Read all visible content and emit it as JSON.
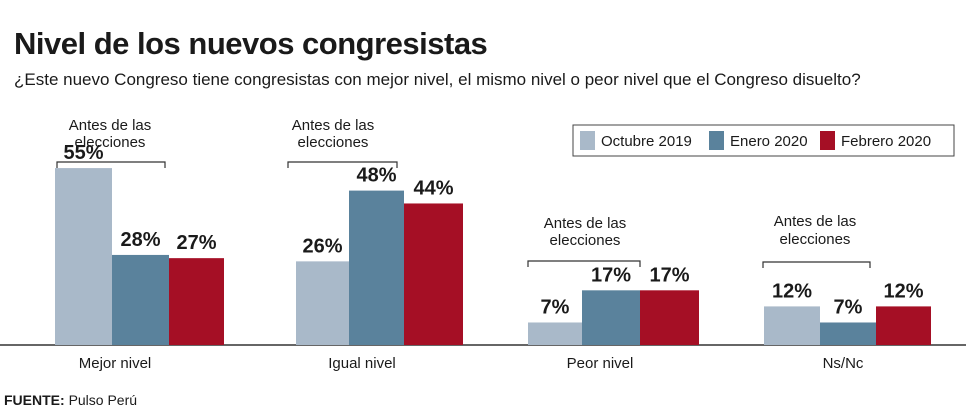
{
  "title": "Nivel de los nuevos congresistas",
  "subtitle": "¿Este nuevo Congreso tiene congresistas con mejor nivel, el mismo nivel o peor nivel que el Congreso disuelto?",
  "source_label": "FUENTE:",
  "source_text": "Pulso Perú",
  "colors": {
    "octubre": "#a9b9c9",
    "enero": "#5a829c",
    "febrero": "#a50f25",
    "axis": "#333333"
  },
  "chart_data": {
    "type": "bar",
    "title": "Nivel de los nuevos congresistas",
    "xlabel": "",
    "ylabel": "",
    "ylim": [
      0,
      60
    ],
    "legend_position": "top-right",
    "categories": [
      "Mejor nivel",
      "Igual nivel",
      "Peor nivel",
      "Ns/Nc"
    ],
    "annotation": "Antes de las elecciones",
    "series": [
      {
        "name": "Octubre 2019",
        "values": [
          55,
          26,
          7,
          12
        ],
        "labels": [
          "55%",
          "26%",
          "7%",
          "12%"
        ]
      },
      {
        "name": "Enero 2020",
        "values": [
          28,
          48,
          17,
          7
        ],
        "labels": [
          "28%",
          "48%",
          "17%",
          "7%"
        ]
      },
      {
        "name": "Febrero 2020",
        "values": [
          27,
          44,
          17,
          12
        ],
        "labels": [
          "27%",
          "44%",
          "17%",
          "12%"
        ]
      }
    ]
  }
}
